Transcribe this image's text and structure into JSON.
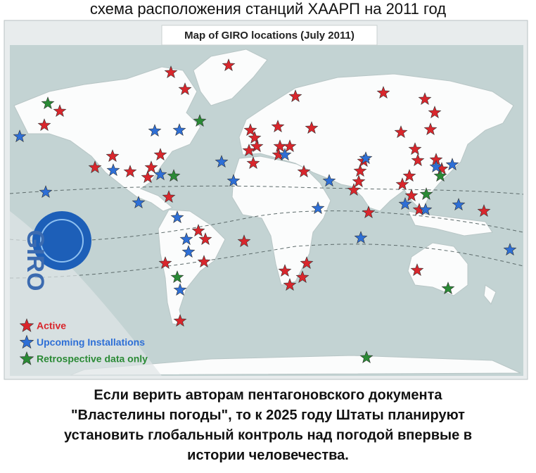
{
  "header": {
    "caption": "схема расположения станций ХААРП на 2011 год"
  },
  "map": {
    "title": "Map of GIRO locations (July 2011)",
    "logo": "GIRO",
    "legend": [
      {
        "label": "Active",
        "color": "#d9262c"
      },
      {
        "label": "Upcoming Installations",
        "color": "#2e6fd6"
      },
      {
        "label": "Retrospective data only",
        "color": "#2a8a35"
      }
    ]
  },
  "footer": {
    "lines": [
      "Если верить авторам пентагоновского документа",
      "\"Властелины погоды\", то к 2025 году Штаты планируют",
      "установить глобальный контроль над погодой впервые в",
      "истории человечества."
    ]
  }
}
